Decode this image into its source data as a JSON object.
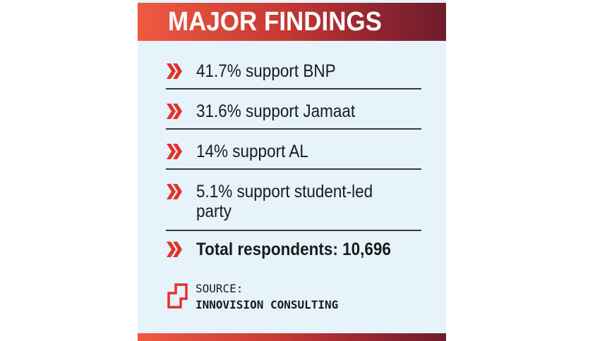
{
  "title": "MAJOR FINDINGS",
  "findings": [
    {
      "line1": "41.7% support BNP",
      "line2": ""
    },
    {
      "line1": "31.6% support Jamaat",
      "line2": ""
    },
    {
      "line1": "14% support AL",
      "line2": ""
    },
    {
      "line1": "5.1% support student-led",
      "line2": "party"
    }
  ],
  "total": "Total respondents: 10,696",
  "source": {
    "label": "SOURCE:",
    "name": "INNOVISION CONSULTING"
  },
  "colors": {
    "banner_start": "#ee5a41",
    "banner_end": "#6e1c2b",
    "chevron": "#e3322b",
    "card_background": "#e6f3fb"
  }
}
